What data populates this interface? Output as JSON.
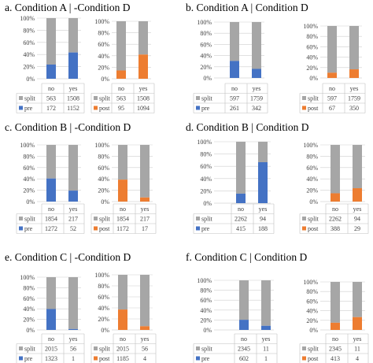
{
  "colors": {
    "split": "#a6a6a6",
    "pre": "#4472c4",
    "post": "#ed7d31",
    "grid": "#cfcfcf",
    "axis": "#bfbfbf",
    "table_line": "#bfbfbf"
  },
  "chart_data": [
    {
      "panel": "a. Condition A | -Condition D",
      "type": "bar",
      "stacked": "percent",
      "categories": [
        "no",
        "yes"
      ],
      "ylim": [
        0,
        100
      ],
      "yticks": [
        "0%",
        "20%",
        "40%",
        "60%",
        "80%",
        "100%"
      ],
      "series": [
        {
          "name": "split",
          "values": [
            563,
            1508
          ]
        },
        {
          "name": "pre",
          "values": [
            172,
            1152
          ]
        }
      ]
    },
    {
      "panel": "",
      "type": "bar",
      "stacked": "percent",
      "categories": [
        "no",
        "yes"
      ],
      "ylim": [
        0,
        100
      ],
      "yticks": [
        "0%",
        "20%",
        "40%",
        "60%",
        "80%",
        "100%"
      ],
      "series": [
        {
          "name": "split",
          "values": [
            563,
            1508
          ]
        },
        {
          "name": "post",
          "values": [
            95,
            1094
          ]
        }
      ]
    },
    {
      "panel": "b. Condition A | Condition D",
      "type": "bar",
      "stacked": "percent",
      "categories": [
        "no",
        "yes"
      ],
      "ylim": [
        0,
        100
      ],
      "yticks": [
        "0%",
        "20%",
        "40%",
        "60%",
        "80%",
        "100%"
      ],
      "series": [
        {
          "name": "split",
          "values": [
            597,
            1759
          ]
        },
        {
          "name": "pre",
          "values": [
            261,
            342
          ]
        }
      ]
    },
    {
      "panel": "",
      "type": "bar",
      "stacked": "percent",
      "categories": [
        "no",
        "yes"
      ],
      "ylim": [
        0,
        100
      ],
      "yticks": [
        "0%",
        "20%",
        "40%",
        "60%",
        "80%",
        "100%"
      ],
      "series": [
        {
          "name": "split",
          "values": [
            597,
            1759
          ]
        },
        {
          "name": "post",
          "values": [
            67,
            350
          ]
        }
      ]
    },
    {
      "panel": "c. Condition B | -Condition D",
      "type": "bar",
      "stacked": "percent",
      "categories": [
        "no",
        "yes"
      ],
      "ylim": [
        0,
        100
      ],
      "yticks": [
        "0%",
        "20%",
        "40%",
        "60%",
        "80%",
        "100%"
      ],
      "series": [
        {
          "name": "split",
          "values": [
            1854,
            217
          ]
        },
        {
          "name": "pre",
          "values": [
            1272,
            52
          ]
        }
      ]
    },
    {
      "panel": "",
      "type": "bar",
      "stacked": "percent",
      "categories": [
        "no",
        "yes"
      ],
      "ylim": [
        0,
        100
      ],
      "yticks": [
        "0%",
        "20%",
        "40%",
        "60%",
        "80%",
        "100%"
      ],
      "series": [
        {
          "name": "split",
          "values": [
            1854,
            217
          ]
        },
        {
          "name": "post",
          "values": [
            1172,
            17
          ]
        }
      ]
    },
    {
      "panel": "d. Condition B | Condition D",
      "type": "bar",
      "stacked": "percent",
      "categories": [
        "no",
        "yes"
      ],
      "ylim": [
        0,
        100
      ],
      "yticks": [
        "0%",
        "20%",
        "40%",
        "60%",
        "80%",
        "100%"
      ],
      "series": [
        {
          "name": "split",
          "values": [
            2262,
            94
          ]
        },
        {
          "name": "pre",
          "values": [
            415,
            188
          ]
        }
      ]
    },
    {
      "panel": "",
      "type": "bar",
      "stacked": "percent",
      "categories": [
        "no",
        "yes"
      ],
      "ylim": [
        0,
        100
      ],
      "yticks": [
        "0%",
        "20%",
        "40%",
        "60%",
        "80%",
        "100%"
      ],
      "series": [
        {
          "name": "split",
          "values": [
            2262,
            94
          ]
        },
        {
          "name": "post",
          "values": [
            388,
            29
          ]
        }
      ]
    },
    {
      "panel": "e. Condition C | -Condition D",
      "type": "bar",
      "stacked": "percent",
      "categories": [
        "no",
        "yes"
      ],
      "ylim": [
        0,
        100
      ],
      "yticks": [
        "0%",
        "20%",
        "40%",
        "60%",
        "80%",
        "100%"
      ],
      "series": [
        {
          "name": "split",
          "values": [
            2015,
            56
          ]
        },
        {
          "name": "pre",
          "values": [
            1323,
            1
          ]
        }
      ]
    },
    {
      "panel": "",
      "type": "bar",
      "stacked": "percent",
      "categories": [
        "no",
        "yes"
      ],
      "ylim": [
        0,
        100
      ],
      "yticks": [
        "0%",
        "20%",
        "40%",
        "60%",
        "80%",
        "100%"
      ],
      "series": [
        {
          "name": "split",
          "values": [
            2015,
            56
          ]
        },
        {
          "name": "post",
          "values": [
            1185,
            4
          ]
        }
      ]
    },
    {
      "panel": "f. Condition C | Condition D",
      "type": "bar",
      "stacked": "percent",
      "categories": [
        "no",
        "yes"
      ],
      "ylim": [
        0,
        100
      ],
      "yticks": [
        "0%",
        "20%",
        "40%",
        "60%",
        "80%",
        "100%"
      ],
      "series": [
        {
          "name": "split",
          "values": [
            2345,
            11
          ]
        },
        {
          "name": "pre",
          "values": [
            602,
            1
          ]
        }
      ]
    },
    {
      "panel": "",
      "type": "bar",
      "stacked": "percent",
      "categories": [
        "no",
        "yes"
      ],
      "ylim": [
        0,
        100
      ],
      "yticks": [
        "0%",
        "20%",
        "40%",
        "60%",
        "80%",
        "100%"
      ],
      "series": [
        {
          "name": "split",
          "values": [
            2345,
            11
          ]
        },
        {
          "name": "post",
          "values": [
            413,
            4
          ]
        }
      ]
    }
  ]
}
